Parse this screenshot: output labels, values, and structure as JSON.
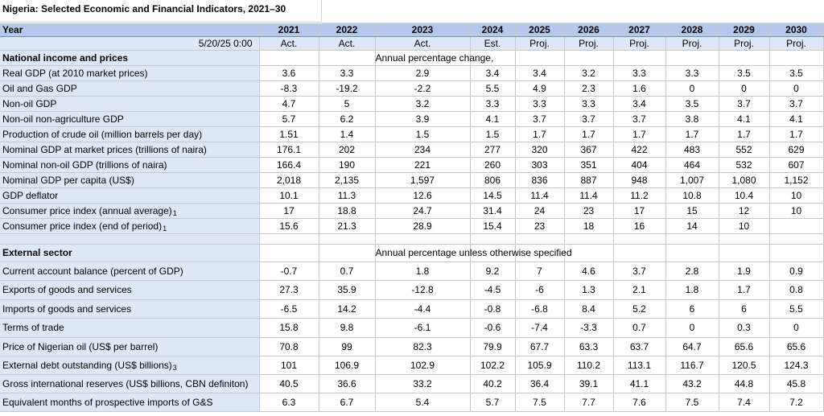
{
  "title": "Nigeria: Selected Economic and Financial Indicators, 2021–30",
  "header": {
    "year_label": "Year",
    "date_stamp": "5/20/25 0:00",
    "years": [
      "2021",
      "2022",
      "2023",
      "2024",
      "2025",
      "2026",
      "2027",
      "2028",
      "2029",
      "2030"
    ],
    "status": [
      "Act.",
      "Act.",
      "Act.",
      "Est.",
      "Proj.",
      "Proj.",
      "Proj.",
      "Proj.",
      "Proj.",
      "Proj."
    ]
  },
  "sections": [
    {
      "name": "National income and prices",
      "note": "Annual percentage change,",
      "rows": [
        {
          "label": "Real GDP (at 2010 market prices)",
          "fn": "",
          "values": [
            "3.6",
            "3.3",
            "2.9",
            "3.4",
            "3.4",
            "3.2",
            "3.3",
            "3.3",
            "3.5",
            "3.5"
          ]
        },
        {
          "label": "Oil and Gas GDP",
          "fn": "",
          "values": [
            "-8.3",
            "-19.2",
            "-2.2",
            "5.5",
            "4.9",
            "2.3",
            "1.6",
            "0",
            "0",
            "0"
          ]
        },
        {
          "label": "Non-oil GDP",
          "fn": "",
          "values": [
            "4.7",
            "5",
            "3.2",
            "3.3",
            "3.3",
            "3.3",
            "3.4",
            "3.5",
            "3.7",
            "3.7"
          ]
        },
        {
          "label": "Non-oil non-agriculture GDP",
          "fn": "",
          "values": [
            "5.7",
            "6.2",
            "3.9",
            "4.1",
            "3.7",
            "3.7",
            "3.7",
            "3.8",
            "4.1",
            "4.1"
          ]
        },
        {
          "label": "Production of crude oil (million barrels per day)",
          "fn": "",
          "values": [
            "1.51",
            "1.4",
            "1.5",
            "1.5",
            "1.7",
            "1.7",
            "1.7",
            "1.7",
            "1.7",
            "1.7"
          ]
        },
        {
          "label": "Nominal GDP at market prices (trillions of naira)",
          "fn": "",
          "values": [
            "176.1",
            "202",
            "234",
            "277",
            "320",
            "367",
            "422",
            "483",
            "552",
            "629"
          ]
        },
        {
          "label": "Nominal non-oil GDP (trillions of naira)",
          "fn": "",
          "values": [
            "166.4",
            "190",
            "221",
            "260",
            "303",
            "351",
            "404",
            "464",
            "532",
            "607"
          ]
        },
        {
          "label": "Nominal GDP per capita (US$)",
          "fn": "",
          "values": [
            "2,018",
            "2,135",
            "1,597",
            "806",
            "836",
            "887",
            "948",
            "1,007",
            "1,080",
            "1,152"
          ]
        },
        {
          "label": "GDP deflator",
          "fn": "",
          "values": [
            "10.1",
            "11.3",
            "12.6",
            "14.5",
            "11.4",
            "11.4",
            "11.2",
            "10.8",
            "10.4",
            "10"
          ]
        },
        {
          "label": "Consumer price index (annual average)",
          "fn": "1",
          "values": [
            "17",
            "18.8",
            "24.7",
            "31.4",
            "24",
            "23",
            "17",
            "15",
            "12",
            "10"
          ]
        },
        {
          "label": "Consumer price index (end of period)",
          "fn": "1",
          "values": [
            "15.6",
            "21.3",
            "28.9",
            "15.4",
            "23",
            "18",
            "16",
            "14",
            "10",
            ""
          ]
        }
      ]
    },
    {
      "name": "External sector",
      "note": "Annual percentage unless otherwise specified",
      "rows": [
        {
          "label": "Current account balance (percent of GDP)",
          "fn": "",
          "values": [
            "-0.7",
            "0.7",
            "1.8",
            "9.2",
            "7",
            "4.6",
            "3.7",
            "2.8",
            "1.9",
            "0.9"
          ]
        },
        {
          "label": "Exports of goods and services",
          "fn": "",
          "values": [
            "27.3",
            "35.9",
            "-12.8",
            "-4.5",
            "-6",
            "1.3",
            "2.1",
            "1.8",
            "1.7",
            "0.8"
          ]
        },
        {
          "label": "Imports of goods and services",
          "fn": "",
          "values": [
            "-6.5",
            "14.2",
            "-4.4",
            "-0.8",
            "-6.8",
            "8.4",
            "5.2",
            "6",
            "6",
            "5.5"
          ]
        },
        {
          "label": "Terms of trade",
          "fn": "",
          "values": [
            "15.8",
            "9.8",
            "-6.1",
            "-0.6",
            "-7.4",
            "-3.3",
            "0.7",
            "0",
            "0.3",
            "0"
          ]
        },
        {
          "label": "Price of Nigerian oil (US$ per barrel)",
          "fn": "",
          "values": [
            "70.8",
            "99",
            "82.3",
            "79.9",
            "67.7",
            "63.3",
            "63.7",
            "64.7",
            "65.6",
            "65.6"
          ]
        },
        {
          "label": "External debt outstanding (US$ billions)",
          "fn": "3",
          "values": [
            "101",
            "106.9",
            "102.9",
            "102.2",
            "105.9",
            "110.2",
            "113.1",
            "116.7",
            "120.5",
            "124.3"
          ]
        },
        {
          "label": "Gross international reserves (US$ billions, CBN definiton)",
          "fn": "",
          "values": [
            "40.5",
            "36.6",
            "33.2",
            "40.2",
            "36.4",
            "39.1",
            "41.1",
            "43.2",
            "44.8",
            "45.8"
          ]
        },
        {
          "label": "Equivalent months of prospective imports of G&S",
          "fn": "",
          "values": [
            "6.3",
            "6.7",
            "5.4",
            "5.7",
            "7.5",
            "7.7",
            "7.6",
            "7.5",
            "7.4",
            "7.2"
          ]
        }
      ]
    }
  ]
}
